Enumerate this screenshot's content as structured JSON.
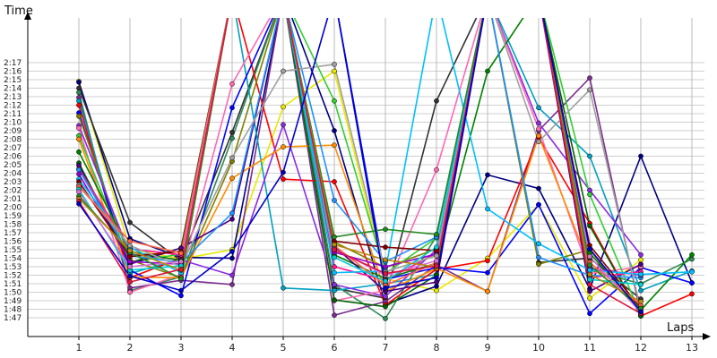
{
  "chart_data": {
    "type": "line",
    "xlabel": "Laps",
    "ylabel": "Time",
    "x": [
      1,
      2,
      3,
      4,
      5,
      6,
      7,
      8,
      9,
      10,
      11,
      12,
      13
    ],
    "ylim": [
      105,
      140
    ],
    "grid": true,
    "x_tick_labels": [
      "1",
      "2",
      "3",
      "4",
      "5",
      "6",
      "7",
      "8",
      "9",
      "10",
      "11",
      "12",
      "13"
    ],
    "y_tick_labels": [
      "1:47",
      "1:48",
      "1:49",
      "1:50",
      "1:51",
      "1:52",
      "1:53",
      "1:54",
      "1:55",
      "1:56",
      "1:57",
      "1:58",
      "1:59",
      "2:00",
      "2:01",
      "2:02",
      "2:03",
      "2:04",
      "2:05",
      "2:06",
      "2:07",
      "2:08",
      "2:09",
      "2:10",
      "2:11",
      "2:12",
      "2:13",
      "2:14",
      "2:15",
      "2:16",
      "2:17"
    ],
    "y_ticks": [
      107,
      108,
      109,
      110,
      111,
      112,
      113,
      114,
      115,
      116,
      117,
      118,
      119,
      120,
      121,
      122,
      123,
      124,
      125,
      126,
      127,
      128,
      129,
      130,
      131,
      132,
      133,
      134,
      135,
      136,
      137
    ],
    "note_units": "seconds",
    "series": [
      {
        "color": "#e8e800",
        "values": [
          134.8,
          115.1,
          113.9,
          115.0,
          131.8,
          136.0,
          111.6,
          110.2,
          114.0,
          120.3,
          109.3,
          113.8,
          null
        ]
      },
      {
        "color": "#000080",
        "values": [
          134.7,
          116.3,
          114.1,
          114.0,
          145,
          129.0,
          108.6,
          110.7,
          123.8,
          122.2,
          110.4,
          126.0,
          111.1
        ]
      },
      {
        "color": "#333333",
        "values": [
          134.0,
          118.2,
          113.7,
          128.8,
          145,
          110.5,
          109.3,
          132.5,
          145,
          113.5,
          114.0,
          109.2,
          null
        ]
      },
      {
        "color": "#2e8b57",
        "values": [
          133.5,
          110.2,
          111.8,
          128.1,
          145,
          110.9,
          106.9,
          116.6,
          145,
          145,
          112.6,
          111.0,
          113.9
        ]
      },
      {
        "color": "#7b2d8e",
        "values": [
          132.9,
          110.5,
          111.4,
          110.9,
          145,
          107.3,
          108.9,
          113.2,
          110.1,
          129.0,
          135.2,
          107.4,
          null
        ]
      },
      {
        "color": "#00a0c0",
        "values": [
          132.5,
          112.2,
          113.9,
          145,
          110.5,
          110.2,
          111.0,
          112.1,
          145,
          131.7,
          126.0,
          110.2,
          112.5
        ]
      },
      {
        "color": "#ff0000",
        "values": [
          132.0,
          111.7,
          114.0,
          145,
          123.3,
          123.0,
          108.5,
          112.7,
          113.7,
          128.2,
          118.1,
          107.2,
          109.8
        ]
      },
      {
        "color": "#0000ff",
        "values": [
          131.1,
          112.6,
          109.6,
          131.7,
          145,
          145,
          111.5,
          112.9,
          112.3,
          120.3,
          107.5,
          112.9,
          111.1
        ]
      },
      {
        "color": "#808000",
        "values": [
          130.7,
          113.8,
          111.7,
          125.4,
          145,
          115.9,
          112.9,
          115.1,
          145,
          113.3,
          115.0,
          107.6,
          null
        ]
      },
      {
        "color": "#8a2be2",
        "values": [
          129.6,
          114.5,
          113.8,
          112.0,
          129.7,
          110.9,
          109.5,
          115.0,
          145,
          129.9,
          122.0,
          114.4,
          null
        ]
      },
      {
        "color": "#ff69b4",
        "values": [
          129.3,
          110.0,
          112.1,
          134.5,
          145,
          109.0,
          110.2,
          124.4,
          145,
          129.2,
          112.2,
          113.0,
          null
        ]
      },
      {
        "color": "#32cd32",
        "values": [
          128.4,
          113.5,
          114.5,
          145,
          145,
          132.5,
          112.2,
          116.4,
          145,
          145,
          121.5,
          107.3,
          null
        ]
      },
      {
        "color": "#ff8c00",
        "values": [
          128.0,
          111.8,
          111.7,
          123.4,
          127.1,
          127.3,
          110.1,
          112.8,
          110.1,
          128.4,
          113.1,
          108.3,
          null
        ]
      },
      {
        "color": "#008000",
        "values": [
          126.5,
          114.8,
          113.7,
          145,
          145,
          114.4,
          111.6,
          113.4,
          136.0,
          145,
          114.6,
          107.9,
          114.4
        ]
      },
      {
        "color": "#006400",
        "values": [
          125.2,
          113.5,
          115.2,
          145,
          145,
          109.1,
          108.3,
          112.0,
          145,
          145,
          117.8,
          107.2,
          null
        ]
      },
      {
        "color": "#4b0082",
        "values": [
          124.9,
          113.3,
          115.2,
          118.6,
          145,
          115.4,
          110.1,
          111.2,
          145,
          145,
          110.1,
          113.3,
          null
        ]
      },
      {
        "color": "#ff1493",
        "values": [
          124.5,
          115.1,
          114.4,
          145,
          145,
          113.0,
          111.4,
          114.6,
          145,
          145,
          111.7,
          112.4,
          null
        ]
      },
      {
        "color": "#1e90ff",
        "values": [
          124.4,
          114.3,
          113.5,
          119.3,
          145,
          120.8,
          113.6,
          116.5,
          145,
          114.1,
          112.0,
          111.7,
          null
        ]
      },
      {
        "color": "#9400d3",
        "values": [
          123.9,
          113.6,
          113.3,
          145,
          145,
          114.7,
          113.0,
          114.5,
          145,
          145,
          112.8,
          112.0,
          null
        ]
      },
      {
        "color": "#00bfff",
        "values": [
          123.3,
          115.3,
          112.3,
          145,
          145,
          112.3,
          112.5,
          145,
          119.8,
          115.7,
          112.6,
          112.1,
          112.4
        ]
      },
      {
        "color": "#800000",
        "values": [
          123.0,
          114.2,
          114.8,
          145,
          145,
          116.0,
          115.3,
          114.9,
          145,
          145,
          115.5,
          108.1,
          null
        ]
      },
      {
        "color": "#a0a0a0",
        "values": [
          122.6,
          115.5,
          113.0,
          125.8,
          136.0,
          136.8,
          112.4,
          114.3,
          145,
          127.7,
          133.8,
          107.9,
          null
        ]
      },
      {
        "color": "#ff6347",
        "values": [
          122.4,
          116.0,
          114.6,
          145,
          145,
          115.5,
          110.8,
          113.5,
          145,
          145,
          113.5,
          108.5,
          null
        ]
      },
      {
        "color": "#00ced1",
        "values": [
          122.1,
          112.6,
          113.1,
          145,
          145,
          114.1,
          111.3,
          115.3,
          145,
          145,
          111.5,
          110.9,
          null
        ]
      },
      {
        "color": "#da70d6",
        "values": [
          121.8,
          113.0,
          113.6,
          145,
          145,
          115.1,
          112.0,
          113.7,
          145,
          145,
          114.2,
          107.6,
          null
        ]
      },
      {
        "color": "#228b22",
        "values": [
          121.3,
          114.7,
          111.6,
          145,
          145,
          116.5,
          117.4,
          116.8,
          145,
          145,
          113.2,
          108.1,
          null
        ]
      },
      {
        "color": "#b8860b",
        "values": [
          121.0,
          114.9,
          112.6,
          145,
          145,
          115.6,
          113.8,
          113.0,
          145,
          145,
          112.1,
          108.9,
          null
        ]
      },
      {
        "color": "#dc143c",
        "values": [
          120.7,
          111.2,
          112.7,
          145,
          145,
          115.0,
          112.2,
          113.1,
          145,
          145,
          110.9,
          107.5,
          null
        ]
      },
      {
        "color": "#0000cd",
        "values": [
          120.4,
          111.9,
          110.2,
          114.8,
          124.1,
          145,
          110.5,
          111.7,
          145,
          145,
          115.1,
          107.7,
          null
        ]
      }
    ]
  }
}
